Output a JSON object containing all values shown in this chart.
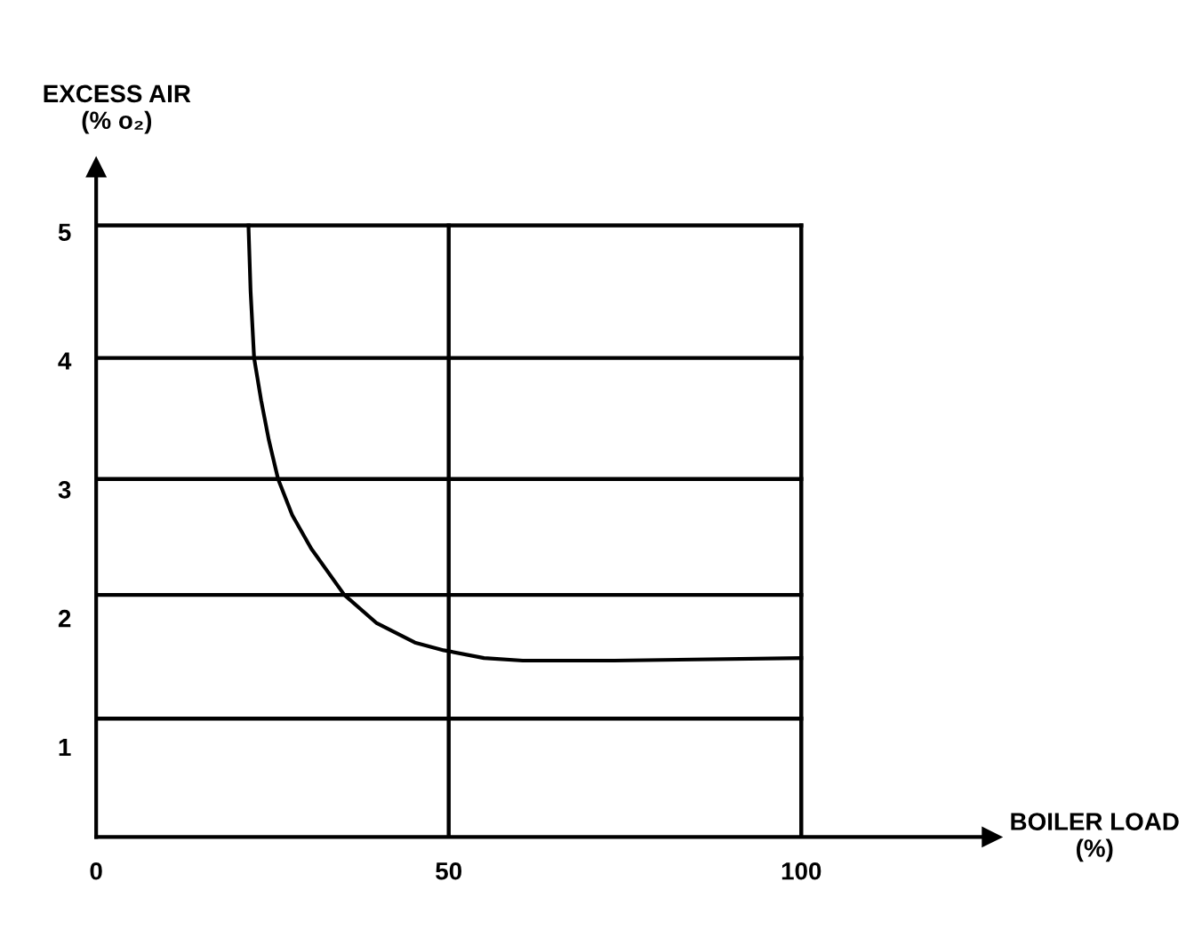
{
  "chart_data": {
    "type": "line",
    "xlabel": "BOILER LOAD\n(%)",
    "ylabel": "EXCESS AIR\n(% o₂)",
    "xlim": [
      0,
      127
    ],
    "ylim": [
      0.3,
      5.5
    ],
    "xticks": [
      0,
      50,
      100
    ],
    "yticks": [
      1,
      2,
      3,
      4,
      5
    ],
    "grid": false,
    "marker": "none",
    "line_style": "solid",
    "series": [
      {
        "color": "#000000",
        "x": [
          21.6,
          21.9,
          22.4,
          23.4,
          24.5,
          25.8,
          27.8,
          30.5,
          35.2,
          39.8,
          45.2,
          49.3,
          55.0,
          60.5,
          73.5,
          100
        ],
        "values": [
          5.05,
          4.54,
          4.02,
          3.69,
          3.38,
          3.08,
          2.8,
          2.54,
          2.18,
          1.96,
          1.81,
          1.75,
          1.69,
          1.67,
          1.67,
          1.69
        ]
      }
    ],
    "ref_lines": [
      {
        "axis": "y",
        "value": 1.22,
        "color": "#000000"
      },
      {
        "axis": "y",
        "value": 2.18,
        "color": "#000000"
      },
      {
        "axis": "y",
        "value": 3.08,
        "color": "#000000"
      },
      {
        "axis": "y",
        "value": 4.02,
        "color": "#000000"
      },
      {
        "axis": "y",
        "value": 5.05,
        "color": "#000000"
      },
      {
        "axis": "x",
        "value": 50,
        "color": "#000000"
      },
      {
        "axis": "x",
        "value": 100,
        "color": "#000000"
      }
    ]
  }
}
